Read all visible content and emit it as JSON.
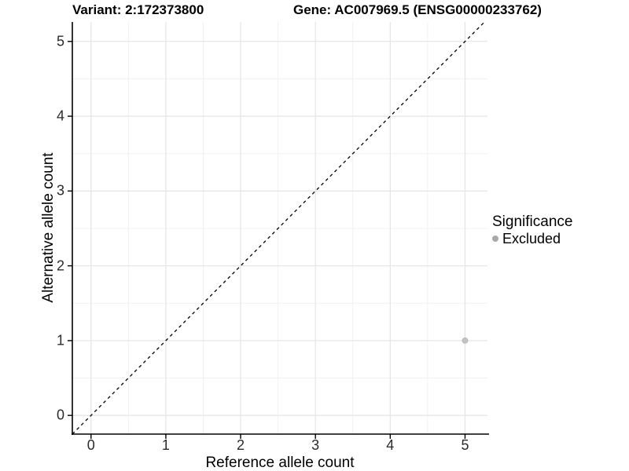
{
  "titles": {
    "variant": "Variant: 2:172373800",
    "gene": "Gene: AC007969.5 (ENSG00000233762)"
  },
  "legend": {
    "title": "Significance",
    "items": [
      {
        "label": "Excluded",
        "color": "#a9a9a9"
      }
    ]
  },
  "chart_data": {
    "type": "scatter",
    "title": "Variant: 2:172373800 | Gene: AC007969.5 (ENSG00000233762)",
    "xlabel": "Reference allele count",
    "ylabel": "Alternative allele count",
    "xlim": [
      -0.25,
      5.3
    ],
    "ylim": [
      -0.25,
      5.26
    ],
    "x_ticks": [
      0,
      1,
      2,
      3,
      4,
      5
    ],
    "y_ticks": [
      0,
      1,
      2,
      3,
      4,
      5
    ],
    "x_minor_ticks": [
      0.5,
      1.5,
      2.5,
      3.5,
      4.5
    ],
    "y_minor_ticks": [
      0.5,
      1.5,
      2.5,
      3.5,
      4.5
    ],
    "grid": "major+minor",
    "legend_position": "right",
    "series": [
      {
        "name": "Excluded",
        "color": "#c3c3c3",
        "points": [
          [
            5,
            1
          ]
        ]
      }
    ],
    "identity_line": {
      "description": "y = x reference line",
      "style": "dashed",
      "color": "#000000",
      "from": [
        -0.25,
        -0.25
      ],
      "to": [
        5.26,
        5.26
      ]
    }
  },
  "colors": {
    "background": "#ffffff",
    "grid_major": "#e6e6e6",
    "grid_minor": "#f1f1f1",
    "axis_line": "#000000",
    "point_fill": "#c3c3c3",
    "point_stroke": "#b2b2b2",
    "legend_point": "#a9a9a9",
    "text": "#000000"
  }
}
